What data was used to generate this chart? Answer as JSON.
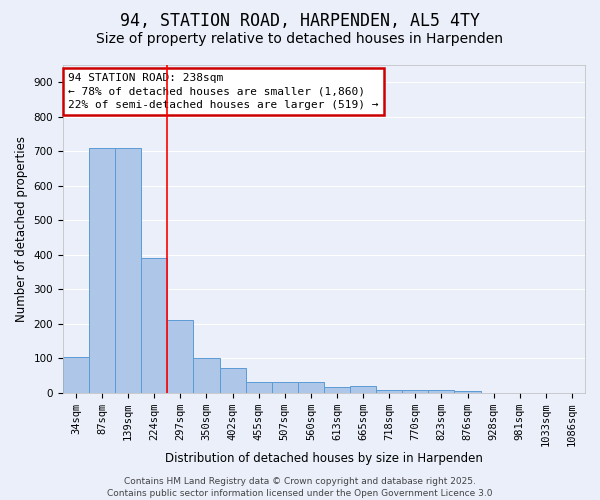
{
  "title": "94, STATION ROAD, HARPENDEN, AL5 4TY",
  "subtitle": "Size of property relative to detached houses in Harpenden",
  "xlabel": "Distribution of detached houses by size in Harpenden",
  "ylabel": "Number of detached properties",
  "bar_values": [
    103,
    710,
    710,
    390,
    210,
    100,
    73,
    33,
    33,
    33,
    18,
    20,
    8,
    8,
    10,
    5,
    0,
    0,
    0,
    0
  ],
  "categories": [
    "34sqm",
    "87sqm",
    "139sqm",
    "224sqm",
    "297sqm",
    "350sqm",
    "402sqm",
    "455sqm",
    "507sqm",
    "560sqm",
    "613sqm",
    "665sqm",
    "718sqm",
    "770sqm",
    "823sqm",
    "876sqm",
    "928sqm",
    "981sqm",
    "1033sqm",
    "1086sqm"
  ],
  "bar_color": "#aec6e8",
  "bar_edge_color": "#5b9bd5",
  "background_color": "#eaeffa",
  "grid_color": "#ffffff",
  "annotation_text": "94 STATION ROAD: 238sqm\n← 78% of detached houses are smaller (1,860)\n22% of semi-detached houses are larger (519) →",
  "annotation_box_color": "#ffffff",
  "annotation_box_edge_color": "#cc0000",
  "red_line_x": 3.5,
  "ylim": [
    0,
    950
  ],
  "yticks": [
    0,
    100,
    200,
    300,
    400,
    500,
    600,
    700,
    800,
    900
  ],
  "footer_text": "Contains HM Land Registry data © Crown copyright and database right 2025.\nContains public sector information licensed under the Open Government Licence 3.0",
  "title_fontsize": 12,
  "subtitle_fontsize": 10,
  "axis_label_fontsize": 8.5,
  "tick_fontsize": 7.5,
  "annotation_fontsize": 8,
  "footer_fontsize": 6.5
}
